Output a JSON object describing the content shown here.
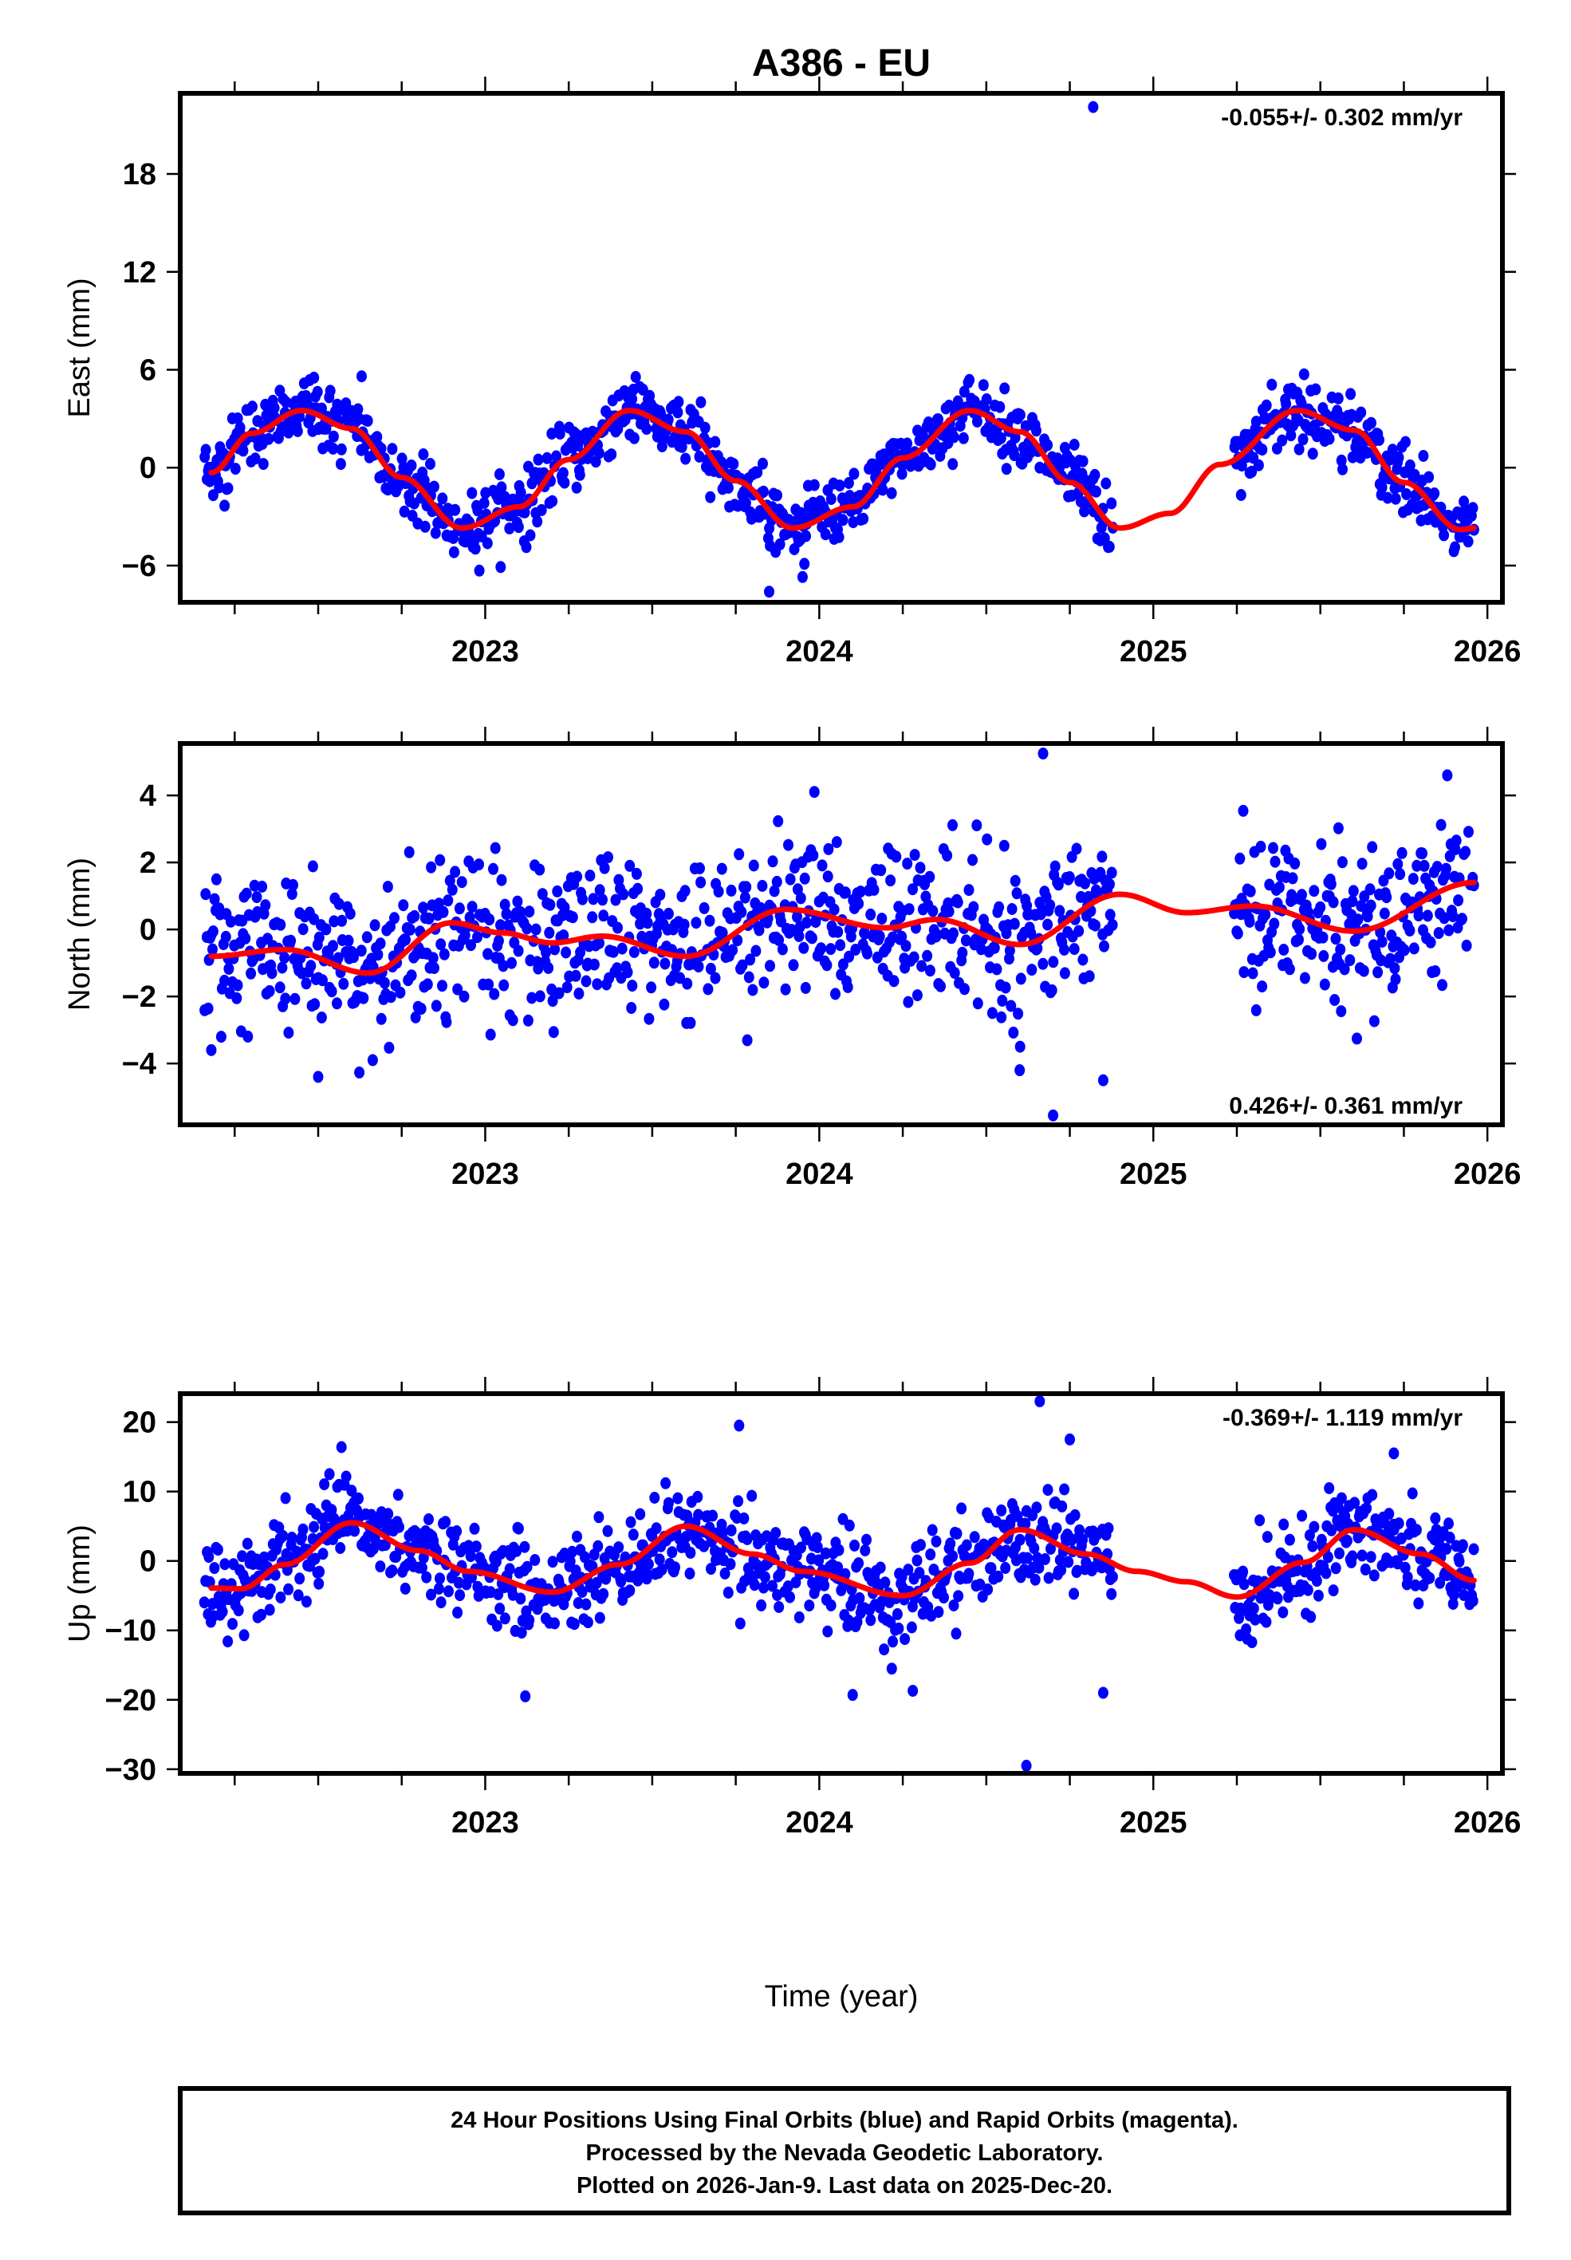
{
  "chart_data": {
    "type": "scatter",
    "title": "A386 - EU",
    "xlabel": "Time (year)",
    "x_ticks": [
      2023,
      2024,
      2025,
      2026
    ],
    "x_minor_tick_step": 0.25,
    "xlim": [
      2022.087,
      2026.045
    ],
    "grid": false,
    "panels": [
      {
        "name": "east",
        "ylabel": "East (mm)",
        "ylim": [
          -8.25,
          22.94
        ],
        "y_ticks": [
          -6,
          0,
          6,
          12,
          18
        ],
        "rate_label": "-0.055+/- 0.302 mm/yr",
        "rate_label_position": "top-right",
        "observations": {
          "color": "#0000ff",
          "start": 2022.16,
          "end": 2025.96,
          "gaps": [
            [
              2024.88,
              2025.24
            ]
          ],
          "noise_mm": 1.0,
          "follows_model": true,
          "outliers": [
            {
              "x": 2024.82,
              "y": 22.1
            },
            {
              "x": 2023.85,
              "y": -7.6
            },
            {
              "x": 2022.63,
              "y": 5.6
            },
            {
              "x": 2023.95,
              "y": -6.7
            }
          ]
        },
        "model": {
          "color": "#ff0000",
          "x": [
            2022.18,
            2022.3,
            2022.45,
            2022.6,
            2022.75,
            2022.93,
            2023.1,
            2023.25,
            2023.43,
            2023.6,
            2023.75,
            2023.92,
            2024.1,
            2024.25,
            2024.45,
            2024.6,
            2024.75,
            2024.9,
            2025.05,
            2025.2,
            2025.43,
            2025.6,
            2025.75,
            2025.92,
            2025.96
          ],
          "y": [
            -0.3,
            2.1,
            3.5,
            2.4,
            -0.6,
            -3.7,
            -2.4,
            0.5,
            3.5,
            2.2,
            -0.8,
            -3.7,
            -2.4,
            0.6,
            3.5,
            2.2,
            -0.9,
            -3.7,
            -2.8,
            0.2,
            3.5,
            2.3,
            -0.9,
            -3.8,
            -3.7
          ]
        }
      },
      {
        "name": "north",
        "ylabel": "North (mm)",
        "ylim": [
          -5.83,
          5.55
        ],
        "y_ticks": [
          -4,
          -2,
          0,
          2,
          4
        ],
        "rate_label": "0.426+/- 0.361 mm/yr",
        "rate_label_position": "bottom-right",
        "observations": {
          "color": "#0000ff",
          "start": 2022.16,
          "end": 2025.96,
          "gaps": [
            [
              2024.88,
              2025.24
            ]
          ],
          "noise_mm": 1.15,
          "follows_model": true,
          "outliers": [
            {
              "x": 2024.67,
              "y": 5.25
            },
            {
              "x": 2024.7,
              "y": -5.55
            },
            {
              "x": 2024.6,
              "y": -4.2
            },
            {
              "x": 2024.85,
              "y": -4.5
            },
            {
              "x": 2022.5,
              "y": -4.4
            },
            {
              "x": 2025.88,
              "y": 4.6
            },
            {
              "x": 2022.18,
              "y": -3.6
            }
          ]
        },
        "model": {
          "color": "#ff0000",
          "x": [
            2022.18,
            2022.4,
            2022.65,
            2022.9,
            2023.05,
            2023.2,
            2023.35,
            2023.6,
            2023.9,
            2024.2,
            2024.35,
            2024.6,
            2024.9,
            2025.1,
            2025.3,
            2025.6,
            2025.96
          ],
          "y": [
            -0.8,
            -0.6,
            -1.3,
            0.2,
            -0.1,
            -0.4,
            -0.2,
            -0.8,
            0.6,
            0.05,
            0.3,
            -0.45,
            1.05,
            0.5,
            0.7,
            -0.05,
            1.4
          ]
        }
      },
      {
        "name": "up",
        "ylabel": "Up (mm)",
        "ylim": [
          -30.6,
          24.1
        ],
        "y_ticks": [
          -30,
          -20,
          -10,
          0,
          10,
          20
        ],
        "rate_label": "-0.369+/- 1.119 mm/yr",
        "rate_label_position": "top-right",
        "observations": {
          "color": "#0000ff",
          "start": 2022.16,
          "end": 2025.96,
          "gaps": [
            [
              2024.88,
              2025.24
            ]
          ],
          "noise_mm": 3.4,
          "follows_model": true,
          "outliers": [
            {
              "x": 2024.66,
              "y": 23.0
            },
            {
              "x": 2024.62,
              "y": -29.5
            },
            {
              "x": 2023.12,
              "y": -19.5
            },
            {
              "x": 2023.76,
              "y": 19.5
            },
            {
              "x": 2024.1,
              "y": -19.3
            },
            {
              "x": 2024.28,
              "y": -18.7
            },
            {
              "x": 2024.85,
              "y": -19.0
            },
            {
              "x": 2025.72,
              "y": 15.5
            },
            {
              "x": 2024.75,
              "y": 17.5
            }
          ]
        },
        "model": {
          "color": "#ff0000",
          "x": [
            2022.18,
            2022.27,
            2022.4,
            2022.6,
            2022.8,
            2022.95,
            2023.2,
            2023.4,
            2023.6,
            2023.8,
            2023.95,
            2024.25,
            2024.45,
            2024.6,
            2024.8,
            2024.95,
            2025.1,
            2025.25,
            2025.45,
            2025.6,
            2025.8,
            2025.96
          ],
          "y": [
            -3.9,
            -4.0,
            -0.5,
            5.5,
            1.5,
            -1.5,
            -4.5,
            -0.5,
            5.0,
            1.0,
            -1.5,
            -5.0,
            -0.3,
            4.5,
            1.0,
            -1.5,
            -3.0,
            -5.2,
            -0.2,
            4.5,
            1.0,
            -2.8
          ]
        }
      }
    ]
  },
  "footer": {
    "line1": "24 Hour Positions Using Final Orbits (blue) and Rapid Orbits (magenta).",
    "line2": "Processed by the Nevada Geodetic Laboratory.",
    "line3": "Plotted on 2026-Jan-9. Last data on 2025-Dec-20."
  }
}
